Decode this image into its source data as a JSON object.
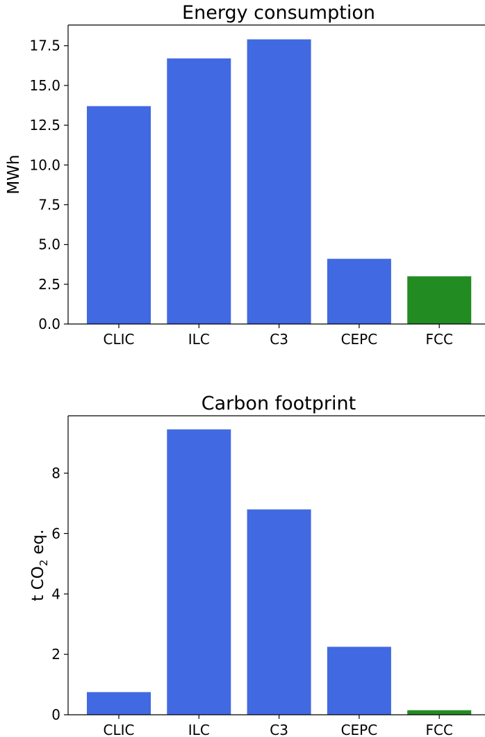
{
  "colors": {
    "default_bar": "#4169e1",
    "highlight_bar": "#228b22"
  },
  "chart_data": [
    {
      "type": "bar",
      "title": "Energy consumption",
      "xlabel": "",
      "ylabel": "MWh",
      "categories": [
        "CLIC",
        "ILC",
        "C3",
        "CEPC",
        "FCC"
      ],
      "values": [
        13.7,
        16.7,
        17.9,
        4.1,
        3.0
      ],
      "highlight": [
        "FCC"
      ],
      "ylim": [
        0,
        18.8
      ],
      "yticks": [
        0.0,
        2.5,
        5.0,
        7.5,
        10.0,
        12.5,
        15.0,
        17.5
      ],
      "ytick_labels": [
        "0.0",
        "2.5",
        "5.0",
        "7.5",
        "10.0",
        "12.5",
        "15.0",
        "17.5"
      ],
      "grid": false,
      "legend": "none"
    },
    {
      "type": "bar",
      "title": "Carbon footprint",
      "xlabel": "",
      "ylabel": "t CO",
      "ylabel_subscript": "2",
      "ylabel_suffix": " eq.",
      "categories": [
        "CLIC",
        "ILC",
        "C3",
        "CEPC",
        "FCC"
      ],
      "values": [
        0.75,
        9.45,
        6.8,
        2.25,
        0.15
      ],
      "highlight": [
        "FCC"
      ],
      "ylim": [
        0,
        9.9
      ],
      "yticks": [
        0,
        2,
        4,
        6,
        8
      ],
      "ytick_labels": [
        "0",
        "2",
        "4",
        "6",
        "8"
      ],
      "grid": false,
      "legend": "none"
    }
  ]
}
